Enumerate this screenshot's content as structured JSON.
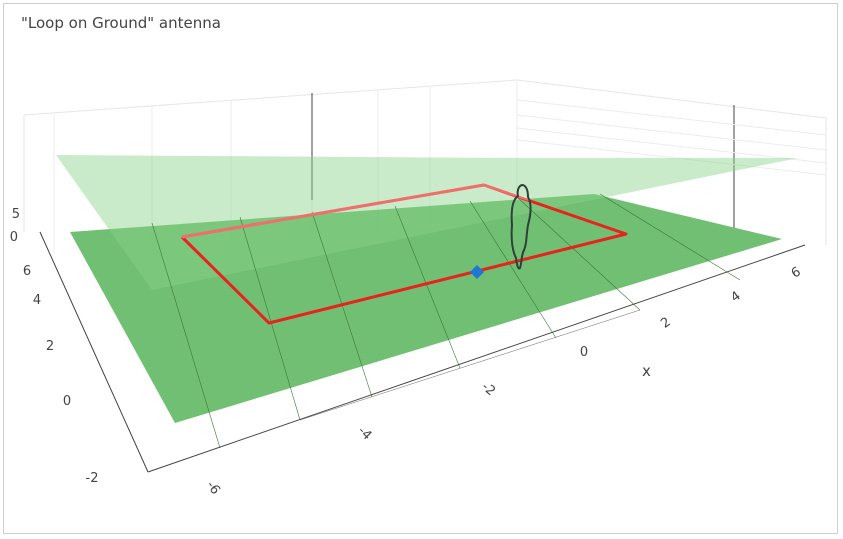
{
  "chart_data": {
    "type": "scatter3d",
    "title": "\"Loop on Ground\" antenna",
    "axes": {
      "x": {
        "label": "x",
        "ticks": [
          "-6",
          "-4",
          "-2",
          "0",
          "2",
          "4",
          "6"
        ]
      },
      "y": {
        "label": "",
        "ticks": [
          "-2",
          "0",
          "2",
          "4",
          "6"
        ]
      },
      "z": {
        "label": "",
        "ticks": [
          "0",
          "5"
        ]
      }
    },
    "surfaces": [
      {
        "name": "ground plane",
        "color": "#4caf50",
        "opacity": 0.8
      },
      {
        "name": "upper plane",
        "color": "#8fd68f",
        "opacity": 0.45
      }
    ],
    "series": [
      {
        "type": "loop",
        "color": "#e8231f"
      },
      {
        "type": "feed-point",
        "color": "#1f77d4"
      },
      {
        "type": "human-figure",
        "color": "#2f3f3a"
      }
    ],
    "grid": true
  }
}
